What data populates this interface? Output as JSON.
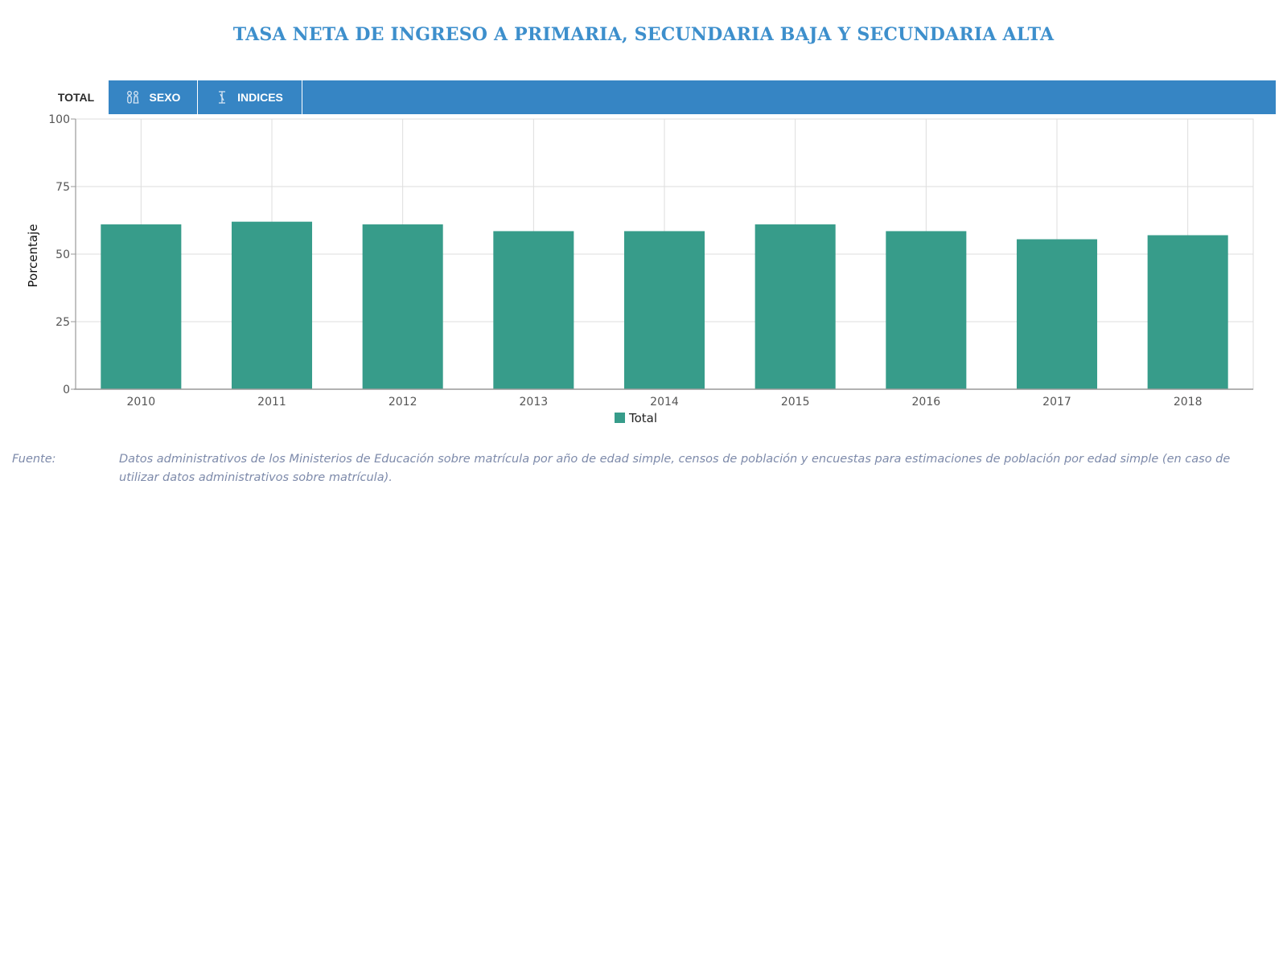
{
  "title": "TASA NETA DE INGRESO A PRIMARIA, SECUNDARIA BAJA Y SECUNDARIA ALTA",
  "tabs": [
    {
      "label": "TOTAL",
      "icon": "none",
      "active": true
    },
    {
      "label": "SEXO",
      "icon": "gender-icon",
      "active": false
    },
    {
      "label": "INDICES",
      "icon": "index-icon",
      "active": false
    }
  ],
  "colors": {
    "accent": "#3685c4",
    "title": "#3d8fcc",
    "bar": "#379c8a",
    "source": "#7d8aaa"
  },
  "chart_data": {
    "type": "bar",
    "categories": [
      "2010",
      "2011",
      "2012",
      "2013",
      "2014",
      "2015",
      "2016",
      "2017",
      "2018"
    ],
    "series": [
      {
        "name": "Total",
        "values": [
          61,
          62,
          61,
          58.5,
          58.5,
          61,
          58.5,
          55.5,
          57
        ]
      }
    ],
    "ylabel": "Porcentaje",
    "xlabel": "",
    "ylim": [
      0,
      100
    ],
    "yticks": [
      0,
      25,
      50,
      75,
      100
    ],
    "grid": true,
    "legend": "bottom-center"
  },
  "source": {
    "label": "Fuente:",
    "text": "Datos administrativos de los Ministerios de Educación sobre matrícula por año de edad simple, censos de población y encuestas para estimaciones de población por edad simple (en caso de utilizar datos administrativos sobre matrícula)."
  }
}
